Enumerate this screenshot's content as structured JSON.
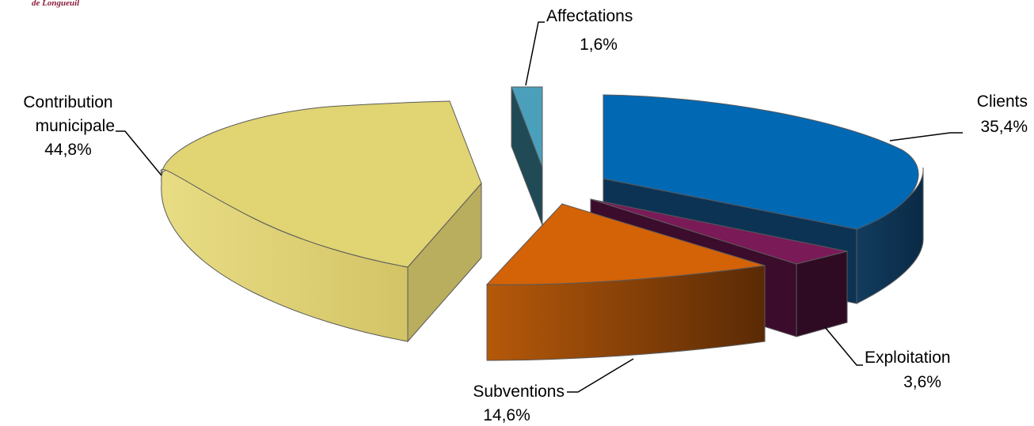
{
  "logo": {
    "text": "de Longueuil"
  },
  "chart_data": {
    "type": "pie",
    "title": "",
    "slices": [
      {
        "name": "Clients",
        "value": 35.4,
        "label": "35,4%",
        "color": "#0168b3"
      },
      {
        "name": "Exploitation",
        "value": 3.6,
        "label": "3,6%",
        "color": "#7a1a57"
      },
      {
        "name": "Subventions",
        "value": 14.6,
        "label": "14,6%",
        "color": "#d46206"
      },
      {
        "name": "Contribution municipale",
        "value": 44.8,
        "label": "44,8%",
        "color": "#e0d473"
      },
      {
        "name": "Affectations",
        "value": 1.6,
        "label": "1,6%",
        "color": "#4aa0bb"
      }
    ],
    "labels": {
      "clients_name": "Clients",
      "clients_value": "35,4%",
      "exploitation_name": "Exploitation",
      "exploitation_value": "3,6%",
      "subventions_name": "Subventions",
      "subventions_value": "14,6%",
      "contribution_name_line1": "Contribution",
      "contribution_name_line2": "municipale",
      "contribution_value": "44,8%",
      "affectations_name": "Affectations",
      "affectations_value": "1,6%"
    },
    "style": "3d-exploded"
  }
}
